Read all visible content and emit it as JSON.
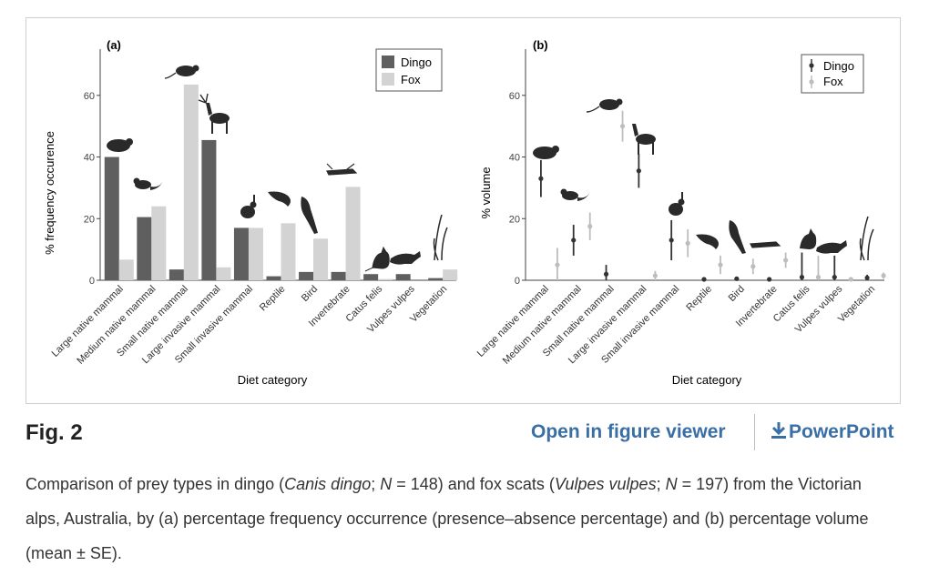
{
  "figure": {
    "label": "Fig. 2",
    "open_viewer": "Open in figure viewer",
    "powerpoint": "PowerPoint",
    "caption_parts": {
      "p1": "Comparison of prey types in dingo (",
      "i1": "Canis dingo",
      "p2": "; ",
      "i2": "N",
      "p3": " = 148) and fox scats (",
      "i3": "Vulpes vulpes",
      "p4": "; ",
      "i4": "N",
      "p5": " = 197) from the Victorian alps, Australia, by (a) percentage frequency occurrence (presence–absence percentage) and (b) percentage volume (mean ± SE)."
    }
  },
  "colors": {
    "dingo": "#5f5f5f",
    "fox": "#d3d3d3",
    "dingo_point": "#333333",
    "fox_point": "#bdbdbd",
    "link": "#3a6fa5"
  },
  "chart_data": [
    {
      "type": "bar",
      "panel": "(a)",
      "categories": [
        "Large native mammal",
        "Medium native mammal",
        "Small native mammal",
        "Large invasive mammal",
        "Small invasive mammal",
        "Reptile",
        "Bird",
        "Invertebrate",
        "Catus felis",
        "Vulpes vulpes",
        "Vegetation"
      ],
      "series": [
        {
          "name": "Dingo",
          "values": [
            40,
            20.5,
            3.5,
            45.5,
            17,
            1.3,
            2.7,
            2.7,
            2,
            2,
            0.7
          ]
        },
        {
          "name": "Fox",
          "values": [
            6.7,
            24,
            63.5,
            4.2,
            17,
            18.5,
            13.5,
            30.3,
            0.4,
            0,
            3.5
          ]
        }
      ],
      "ylabel": "% frequency occurence",
      "xlabel": "Diet category",
      "yticks": [
        0,
        20,
        40,
        60
      ],
      "ylim": [
        0,
        75
      ],
      "legend": "top-right"
    },
    {
      "type": "scatter",
      "panel": "(b)",
      "categories": [
        "Large native mammal",
        "Medium native mammal",
        "Small native mammal",
        "Large invasive mammal",
        "Small invasive mammal",
        "Reptile",
        "Bird",
        "Invertebrate",
        "Catus felis",
        "Vulpes vulpes",
        "Vegetation"
      ],
      "series": [
        {
          "name": "Dingo",
          "values": [
            33,
            13,
            2,
            35.5,
            13,
            0.3,
            0.5,
            0.3,
            1,
            1,
            0.8
          ],
          "se": [
            6,
            5,
            3,
            5.5,
            6.5,
            0.3,
            0.5,
            0.3,
            8,
            7,
            1
          ]
        },
        {
          "name": "Fox",
          "values": [
            5,
            17.5,
            50,
            1.5,
            12,
            5,
            4.5,
            6.5,
            1,
            0.3,
            1.5
          ],
          "se": [
            5.5,
            4.5,
            5,
            1.5,
            4.5,
            3,
            2.5,
            2.5,
            7,
            0.3,
            1
          ]
        }
      ],
      "ylabel": "% volume",
      "xlabel": "Diet category",
      "yticks": [
        0,
        20,
        40,
        60
      ],
      "ylim": [
        0,
        75
      ],
      "legend": "top-right"
    }
  ]
}
